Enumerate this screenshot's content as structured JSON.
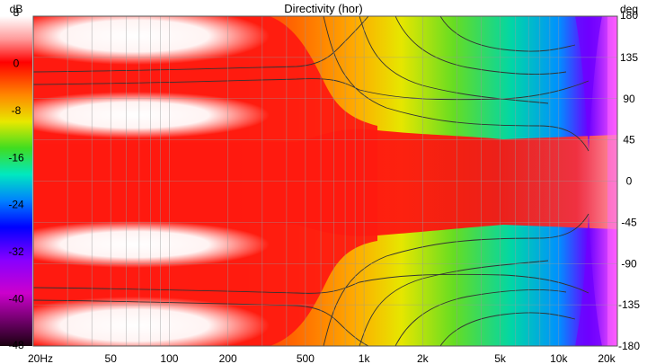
{
  "chart_data": {
    "type": "heatmap",
    "title": "Directivity (hor)",
    "colorbar": {
      "unit": "dB",
      "ticks": [
        8,
        0,
        -8,
        -16,
        -24,
        -32,
        -40,
        -48
      ],
      "range": [
        -48,
        8
      ]
    },
    "x_axis": {
      "scale": "log",
      "range": [
        20,
        20000
      ],
      "ticks": [
        {
          "value": 20,
          "label": "20Hz"
        },
        {
          "value": 50,
          "label": "50"
        },
        {
          "value": 100,
          "label": "100"
        },
        {
          "value": 200,
          "label": "200"
        },
        {
          "value": 500,
          "label": "500"
        },
        {
          "value": 1000,
          "label": "1k"
        },
        {
          "value": 2000,
          "label": "2k"
        },
        {
          "value": 5000,
          "label": "5k"
        },
        {
          "value": 10000,
          "label": "10k"
        },
        {
          "value": 20000,
          "label": "20k"
        }
      ]
    },
    "y_axis": {
      "unit": "deg",
      "range": [
        -180,
        180
      ],
      "ticks": [
        180,
        135,
        90,
        45,
        0,
        -45,
        -90,
        -135,
        -180
      ]
    },
    "grid": true
  }
}
